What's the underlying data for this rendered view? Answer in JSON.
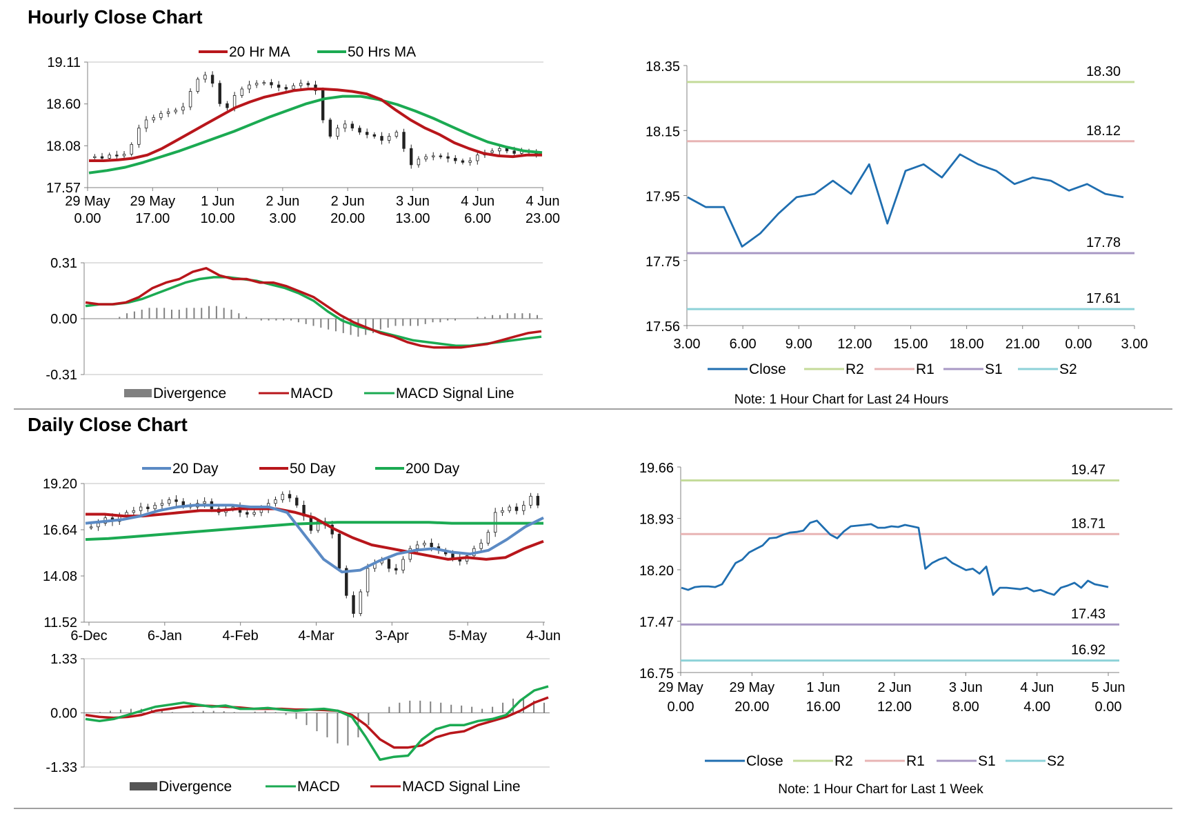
{
  "sections": {
    "hourly_title": "Hourly Close Chart",
    "daily_title": "Daily Close Chart"
  },
  "colors": {
    "red": "#B8161B",
    "green": "#1BAA52",
    "blue": "#1F6EB0",
    "blue2": "#5B8AC4",
    "gray": "#808080",
    "r2": "#C4DB9A",
    "r1": "#E8B4B4",
    "s1": "#A898C4",
    "s2": "#8DD2D8"
  },
  "chart_data": [
    {
      "id": "hourly_price",
      "type": "candlestick",
      "legend": [
        "20 Hr MA",
        "50 Hrs MA"
      ],
      "y_ticks": [
        "19.11",
        "18.60",
        "18.08",
        "17.57"
      ],
      "ylim": [
        17.57,
        19.11
      ],
      "x_ticks": [
        [
          "29 May",
          "0.00"
        ],
        [
          "29 May",
          "17.00"
        ],
        [
          "1 Jun",
          "10.00"
        ],
        [
          "2 Jun",
          "3.00"
        ],
        [
          "2 Jun",
          "20.00"
        ],
        [
          "3 Jun",
          "13.00"
        ],
        [
          "4 Jun",
          "6.00"
        ],
        [
          "4 Jun",
          "23.00"
        ]
      ],
      "close": [
        17.95,
        17.93,
        17.97,
        17.96,
        17.98,
        18.1,
        18.3,
        18.4,
        18.43,
        18.48,
        18.5,
        18.52,
        18.56,
        18.75,
        18.9,
        18.95,
        18.85,
        18.6,
        18.55,
        18.7,
        18.78,
        18.83,
        18.85,
        18.86,
        18.83,
        18.8,
        18.78,
        18.82,
        18.85,
        18.83,
        18.76,
        18.4,
        18.2,
        18.3,
        18.35,
        18.3,
        18.25,
        18.22,
        18.2,
        18.15,
        18.2,
        18.25,
        18.05,
        17.85,
        17.92,
        17.95,
        17.96,
        17.95,
        17.93,
        17.9,
        17.88,
        17.9,
        17.97,
        18.0,
        18.02,
        18.05,
        18.02,
        17.99,
        18.02,
        18.0,
        17.98
      ],
      "ma20": [
        17.9,
        17.9,
        17.91,
        17.93,
        17.97,
        18.05,
        18.15,
        18.25,
        18.35,
        18.45,
        18.55,
        18.62,
        18.68,
        18.72,
        18.76,
        18.78,
        18.78,
        18.77,
        18.75,
        18.72,
        18.65,
        18.52,
        18.4,
        18.3,
        18.22,
        18.12,
        18.05,
        17.99,
        17.96,
        17.95,
        17.97,
        17.97
      ],
      "ma50": [
        17.75,
        17.78,
        17.82,
        17.88,
        17.95,
        18.02,
        18.1,
        18.18,
        18.26,
        18.35,
        18.44,
        18.52,
        18.6,
        18.66,
        18.69,
        18.69,
        18.65,
        18.59,
        18.51,
        18.42,
        18.32,
        18.22,
        18.13,
        18.07,
        18.02,
        18.0
      ]
    },
    {
      "id": "hourly_macd",
      "type": "macd",
      "legend": [
        "Divergence",
        "MACD",
        "MACD Signal Line"
      ],
      "y_ticks": [
        "0.31",
        "0.00",
        "-0.31"
      ],
      "ylim": [
        -0.31,
        0.31
      ],
      "macd": [
        0.09,
        0.08,
        0.08,
        0.09,
        0.12,
        0.17,
        0.2,
        0.22,
        0.26,
        0.28,
        0.24,
        0.22,
        0.22,
        0.2,
        0.2,
        0.18,
        0.15,
        0.12,
        0.07,
        0.02,
        -0.02,
        -0.05,
        -0.08,
        -0.1,
        -0.13,
        -0.15,
        -0.16,
        -0.16,
        -0.16,
        -0.15,
        -0.14,
        -0.12,
        -0.1,
        -0.08,
        -0.07
      ],
      "signal": [
        0.07,
        0.08,
        0.08,
        0.09,
        0.11,
        0.14,
        0.17,
        0.2,
        0.22,
        0.23,
        0.23,
        0.22,
        0.21,
        0.19,
        0.17,
        0.14,
        0.1,
        0.04,
        -0.01,
        -0.04,
        -0.06,
        -0.08,
        -0.1,
        -0.12,
        -0.13,
        -0.14,
        -0.15,
        -0.15,
        -0.14,
        -0.13,
        -0.12,
        -0.11,
        -0.1
      ],
      "divergence": [
        0,
        0,
        0,
        0,
        0.01,
        0.03,
        0.04,
        0.05,
        0.06,
        0.06,
        0.06,
        0.05,
        0.05,
        0.06,
        0.06,
        0.06,
        0.07,
        0.07,
        0.06,
        0.05,
        0.03,
        0.01,
        0,
        -0.01,
        -0.01,
        -0.01,
        -0.01,
        -0.01,
        -0.02,
        -0.03,
        -0.04,
        -0.05,
        -0.06,
        -0.07,
        -0.08,
        -0.09,
        -0.1,
        -0.09,
        -0.08,
        -0.06,
        -0.05,
        -0.04,
        -0.04,
        -0.04,
        -0.04,
        -0.03,
        -0.02,
        -0.02,
        -0.01,
        -0.01,
        0,
        0,
        0.01,
        0.01,
        0.02,
        0.02,
        0.03,
        0.03,
        0.03,
        0.03,
        0.02
      ]
    },
    {
      "id": "hourly_24h",
      "type": "line",
      "legend": [
        "Close",
        "R2",
        "R1",
        "S1",
        "S2"
      ],
      "y_ticks": [
        "18.35",
        "18.15",
        "17.95",
        "17.75",
        "17.56"
      ],
      "ylim": [
        17.56,
        18.35
      ],
      "x_ticks": [
        "3.00",
        "6.00",
        "9.00",
        "12.00",
        "15.00",
        "18.00",
        "21.00",
        "0.00",
        "3.00"
      ],
      "close": [
        17.95,
        17.92,
        17.92,
        17.8,
        17.84,
        17.9,
        17.95,
        17.96,
        18.0,
        17.96,
        18.05,
        17.87,
        18.03,
        18.05,
        18.01,
        18.08,
        18.05,
        18.03,
        17.99,
        18.01,
        18.0,
        17.97,
        17.99,
        17.96,
        17.95
      ],
      "levels": {
        "R2": 18.3,
        "R1": 18.12,
        "S1": 17.78,
        "S2": 17.61
      },
      "level_labels": [
        "18.30",
        "18.12",
        "17.78",
        "17.61"
      ],
      "note": "Note: 1 Hour Chart for Last 24 Hours"
    },
    {
      "id": "daily_price",
      "type": "candlestick",
      "legend": [
        "20 Day",
        "50 Day",
        "200 Day"
      ],
      "y_ticks": [
        "19.20",
        "16.64",
        "14.08",
        "11.52"
      ],
      "ylim": [
        11.52,
        19.2
      ],
      "x_ticks": [
        "6-Dec",
        "6-Jan",
        "4-Feb",
        "4-Mar",
        "3-Apr",
        "5-May",
        "4-Jun"
      ],
      "close": [
        16.8,
        17.0,
        17.3,
        17.1,
        17.4,
        17.6,
        17.7,
        17.9,
        17.8,
        18.0,
        18.1,
        18.3,
        18.2,
        18.0,
        17.9,
        18.1,
        18.2,
        17.8,
        17.6,
        17.8,
        17.9,
        17.6,
        17.5,
        17.6,
        17.8,
        18.1,
        18.3,
        18.6,
        18.4,
        18.0,
        17.4,
        16.6,
        17.1,
        16.9,
        16.4,
        14.5,
        13.0,
        12.0,
        13.2,
        14.5,
        14.8,
        15.0,
        14.5,
        14.4,
        15.0,
        15.6,
        15.8,
        15.9,
        15.7,
        15.5,
        15.3,
        15.1,
        14.9,
        15.2,
        15.6,
        15.9,
        16.5,
        17.6,
        17.7,
        17.9,
        17.7,
        18.0,
        18.5,
        18.0
      ],
      "ma20": [
        17.0,
        17.1,
        17.2,
        17.4,
        17.7,
        17.9,
        18.0,
        18.0,
        18.0,
        17.9,
        17.9,
        17.6,
        16.3,
        15.0,
        14.3,
        14.4,
        14.9,
        15.3,
        15.5,
        15.6,
        15.4,
        15.3,
        15.5,
        16.1,
        16.8,
        17.3
      ],
      "ma50": [
        17.5,
        17.5,
        17.4,
        17.4,
        17.5,
        17.6,
        17.7,
        17.7,
        17.8,
        17.8,
        17.8,
        17.6,
        17.3,
        16.7,
        16.2,
        15.8,
        15.6,
        15.4,
        15.2,
        15.0,
        15.1,
        15.0,
        15.1,
        15.6,
        16.0
      ],
      "ma200": [
        16.1,
        16.15,
        16.25,
        16.35,
        16.45,
        16.55,
        16.65,
        16.75,
        16.85,
        16.95,
        17.0,
        17.05,
        17.05,
        17.05,
        17.05,
        17.05,
        17.0,
        17.0,
        17.0,
        17.0,
        17.0
      ]
    },
    {
      "id": "daily_macd",
      "type": "macd",
      "legend": [
        "Divergence",
        "MACD",
        "MACD Signal Line"
      ],
      "y_ticks": [
        "1.33",
        "0.00",
        "-1.33"
      ],
      "ylim": [
        -1.33,
        1.33
      ],
      "macd": [
        -0.15,
        -0.2,
        -0.15,
        -0.05,
        0.05,
        0.15,
        0.2,
        0.25,
        0.2,
        0.15,
        0.18,
        0.1,
        0.1,
        0.12,
        0.08,
        0.05,
        0.08,
        0.1,
        0.05,
        -0.1,
        -0.6,
        -1.15,
        -1.08,
        -1.05,
        -0.65,
        -0.4,
        -0.3,
        -0.3,
        -0.2,
        -0.15,
        -0.05,
        0.3,
        0.55,
        0.65
      ],
      "signal": [
        -0.05,
        -0.1,
        -0.12,
        -0.1,
        -0.05,
        0.05,
        0.1,
        0.15,
        0.18,
        0.17,
        0.15,
        0.13,
        0.1,
        0.1,
        0.1,
        0.08,
        0.08,
        0.07,
        0.05,
        -0.05,
        -0.3,
        -0.65,
        -0.85,
        -0.85,
        -0.8,
        -0.6,
        -0.5,
        -0.45,
        -0.3,
        -0.2,
        -0.1,
        0.05,
        0.25,
        0.38
      ],
      "divergence": [
        0,
        0.02,
        0.05,
        0.08,
        0.1,
        0.1,
        0.08,
        0.05,
        0.02,
        0,
        0.03,
        0.05,
        0.05,
        0.04,
        0.02,
        0,
        0.03,
        0.05,
        0.02,
        -0.05,
        -0.15,
        -0.3,
        -0.45,
        -0.6,
        -0.75,
        -0.8,
        -0.6,
        -0.3,
        0,
        0.15,
        0.25,
        0.3,
        0.3,
        0.28,
        0.25,
        0.2,
        0.18,
        0.15,
        0.1,
        0.15,
        0.25,
        0.35,
        0.35,
        0.3,
        0.25
      ]
    },
    {
      "id": "daily_1week",
      "type": "line",
      "legend": [
        "Close",
        "R2",
        "R1",
        "S1",
        "S2"
      ],
      "y_ticks": [
        "19.66",
        "18.93",
        "18.20",
        "17.47",
        "16.75"
      ],
      "ylim": [
        16.75,
        19.66
      ],
      "x_ticks": [
        [
          "29 May",
          "0.00"
        ],
        [
          "29 May",
          "20.00"
        ],
        [
          "1 Jun",
          "16.00"
        ],
        [
          "2 Jun",
          "12.00"
        ],
        [
          "3 Jun",
          "8.00"
        ],
        [
          "4 Jun",
          "4.00"
        ],
        [
          "5 Jun",
          "0.00"
        ]
      ],
      "close": [
        17.95,
        17.92,
        17.96,
        17.97,
        17.97,
        17.96,
        18.0,
        18.15,
        18.3,
        18.35,
        18.45,
        18.5,
        18.55,
        18.65,
        18.66,
        18.7,
        18.73,
        18.74,
        18.76,
        18.87,
        18.9,
        18.8,
        18.7,
        18.65,
        18.75,
        18.82,
        18.83,
        18.84,
        18.85,
        18.8,
        18.8,
        18.82,
        18.81,
        18.84,
        18.82,
        18.8,
        18.22,
        18.3,
        18.35,
        18.38,
        18.3,
        18.25,
        18.2,
        18.22,
        18.15,
        18.25,
        17.85,
        17.95,
        17.95,
        17.94,
        17.93,
        17.95,
        17.9,
        17.92,
        17.88,
        17.85,
        17.95,
        17.98,
        18.02,
        17.95,
        18.05,
        18.0,
        17.98,
        17.96
      ],
      "levels": {
        "R2": 19.47,
        "R1": 18.71,
        "S1": 17.43,
        "S2": 16.92
      },
      "level_labels": [
        "19.47",
        "18.71",
        "17.43",
        "16.92"
      ],
      "note": "Note: 1 Hour Chart for Last 1 Week"
    }
  ]
}
